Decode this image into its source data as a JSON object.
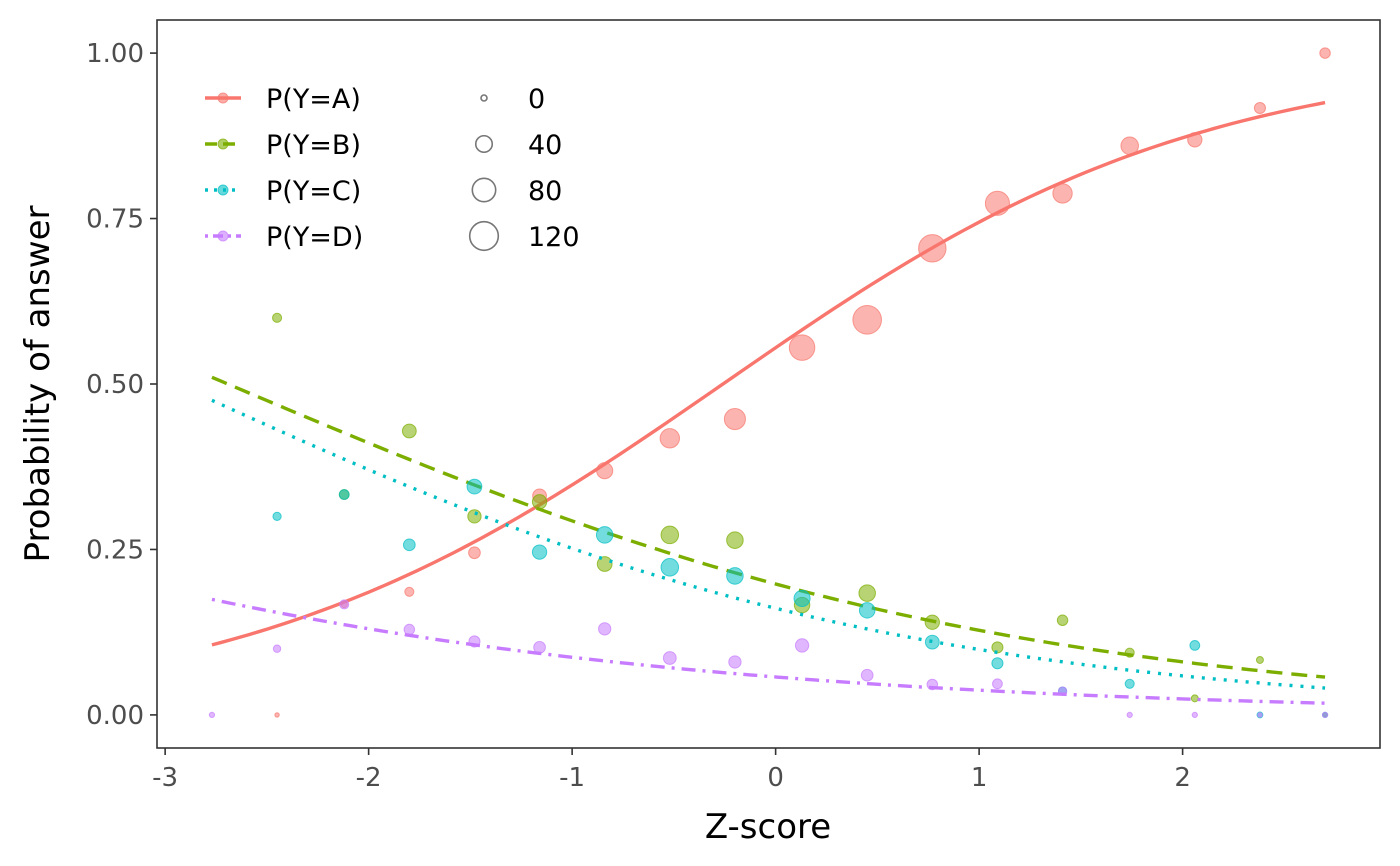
{
  "chart_data": {
    "type": "scatter",
    "xlabel": "Z-score",
    "ylabel": "Probability of answer",
    "xlim": [
      -3.04,
      2.97
    ],
    "ylim": [
      -0.05,
      1.05
    ],
    "x_ticks": [
      -3,
      -2,
      -1,
      0,
      1,
      2
    ],
    "x_tick_labels": [
      "-3",
      "-2",
      "-1",
      "0",
      "1",
      "2"
    ],
    "y_ticks": [
      0,
      0.25,
      0.5,
      0.75,
      1.0
    ],
    "y_tick_labels": [
      "0.00",
      "0.25",
      "0.50",
      "0.75",
      "1.00"
    ],
    "grid": false,
    "legend_placement": "top-left inside",
    "size_legend": {
      "values": [
        0,
        40,
        80,
        120
      ],
      "labels": [
        "0",
        "40",
        "80",
        "120"
      ],
      "size_range": [
        0,
        150
      ]
    },
    "series": [
      {
        "name": "P(Y=A)",
        "color": "#F8766D",
        "line_style": "solid",
        "points": [
          {
            "x": -2.45,
            "y": 0.0,
            "n": 2
          },
          {
            "x": -2.12,
            "y": 0.167,
            "n": 6
          },
          {
            "x": -1.8,
            "y": 0.186,
            "n": 12
          },
          {
            "x": -1.48,
            "y": 0.245,
            "n": 20
          },
          {
            "x": -1.16,
            "y": 0.331,
            "n": 28
          },
          {
            "x": -0.84,
            "y": 0.369,
            "n": 38
          },
          {
            "x": -0.52,
            "y": 0.418,
            "n": 55
          },
          {
            "x": -0.2,
            "y": 0.447,
            "n": 65
          },
          {
            "x": 0.13,
            "y": 0.555,
            "n": 95
          },
          {
            "x": 0.45,
            "y": 0.597,
            "n": 120
          },
          {
            "x": 0.77,
            "y": 0.705,
            "n": 110
          },
          {
            "x": 1.09,
            "y": 0.773,
            "n": 85
          },
          {
            "x": 1.41,
            "y": 0.788,
            "n": 55
          },
          {
            "x": 1.74,
            "y": 0.86,
            "n": 45
          },
          {
            "x": 2.06,
            "y": 0.869,
            "n": 30
          },
          {
            "x": 2.38,
            "y": 0.917,
            "n": 18
          },
          {
            "x": 2.7,
            "y": 1.0,
            "n": 16
          }
        ],
        "curve": {
          "type": "logistic",
          "intercept": 0.22,
          "slope": 0.85,
          "x_range": [
            -2.77,
            2.7
          ]
        }
      },
      {
        "name": "P(Y=B)",
        "color": "#7CAE00",
        "line_style": "dashed",
        "points": [
          {
            "x": -2.45,
            "y": 0.6,
            "n": 12
          },
          {
            "x": -2.12,
            "y": 0.333,
            "n": 14
          },
          {
            "x": -1.8,
            "y": 0.429,
            "n": 28
          },
          {
            "x": -1.48,
            "y": 0.3,
            "n": 26
          },
          {
            "x": -1.16,
            "y": 0.322,
            "n": 30
          },
          {
            "x": -0.84,
            "y": 0.228,
            "n": 32
          },
          {
            "x": -0.52,
            "y": 0.272,
            "n": 45
          },
          {
            "x": -0.2,
            "y": 0.264,
            "n": 40
          },
          {
            "x": 0.13,
            "y": 0.166,
            "n": 35
          },
          {
            "x": 0.45,
            "y": 0.184,
            "n": 40
          },
          {
            "x": 0.77,
            "y": 0.14,
            "n": 30
          },
          {
            "x": 1.09,
            "y": 0.102,
            "n": 18
          },
          {
            "x": 1.41,
            "y": 0.143,
            "n": 16
          },
          {
            "x": 1.74,
            "y": 0.094,
            "n": 12
          },
          {
            "x": 2.06,
            "y": 0.025,
            "n": 7
          },
          {
            "x": 2.38,
            "y": 0.083,
            "n": 7
          },
          {
            "x": 2.7,
            "y": 0.0,
            "n": 3
          }
        ],
        "curve": {
          "type": "logistic",
          "intercept": -1.4,
          "slope": -0.52,
          "x_range": [
            -2.77,
            2.7
          ]
        }
      },
      {
        "name": "P(Y=C)",
        "color": "#00BFC4",
        "line_style": "dotted",
        "points": [
          {
            "x": -2.45,
            "y": 0.3,
            "n": 10
          },
          {
            "x": -2.12,
            "y": 0.333,
            "n": 14
          },
          {
            "x": -1.8,
            "y": 0.257,
            "n": 20
          },
          {
            "x": -1.48,
            "y": 0.345,
            "n": 32
          },
          {
            "x": -1.16,
            "y": 0.246,
            "n": 30
          },
          {
            "x": -0.84,
            "y": 0.272,
            "n": 40
          },
          {
            "x": -0.52,
            "y": 0.223,
            "n": 45
          },
          {
            "x": -0.2,
            "y": 0.21,
            "n": 40
          },
          {
            "x": 0.13,
            "y": 0.176,
            "n": 38
          },
          {
            "x": 0.45,
            "y": 0.158,
            "n": 35
          },
          {
            "x": 0.77,
            "y": 0.11,
            "n": 28
          },
          {
            "x": 1.09,
            "y": 0.078,
            "n": 18
          },
          {
            "x": 1.41,
            "y": 0.036,
            "n": 10
          },
          {
            "x": 1.74,
            "y": 0.047,
            "n": 12
          },
          {
            "x": 2.06,
            "y": 0.105,
            "n": 14
          },
          {
            "x": 2.38,
            "y": 0.0,
            "n": 5
          },
          {
            "x": 2.7,
            "y": 0.0,
            "n": 4
          }
        ],
        "curve": {
          "type": "logistic",
          "intercept": -1.65,
          "slope": -0.56,
          "x_range": [
            -2.77,
            2.7
          ]
        }
      },
      {
        "name": "P(Y=D)",
        "color": "#C77CFF",
        "line_style": "dotdash",
        "points": [
          {
            "x": -2.77,
            "y": 0.0,
            "n": 4
          },
          {
            "x": -2.45,
            "y": 0.1,
            "n": 8
          },
          {
            "x": -2.12,
            "y": 0.167,
            "n": 12
          },
          {
            "x": -1.8,
            "y": 0.129,
            "n": 16
          },
          {
            "x": -1.48,
            "y": 0.111,
            "n": 18
          },
          {
            "x": -1.16,
            "y": 0.102,
            "n": 20
          },
          {
            "x": -0.84,
            "y": 0.13,
            "n": 22
          },
          {
            "x": -0.52,
            "y": 0.086,
            "n": 24
          },
          {
            "x": -0.2,
            "y": 0.08,
            "n": 22
          },
          {
            "x": 0.13,
            "y": 0.105,
            "n": 26
          },
          {
            "x": 0.45,
            "y": 0.06,
            "n": 20
          },
          {
            "x": 0.77,
            "y": 0.046,
            "n": 16
          },
          {
            "x": 1.09,
            "y": 0.047,
            "n": 14
          },
          {
            "x": 1.41,
            "y": 0.036,
            "n": 10
          },
          {
            "x": 1.74,
            "y": 0.0,
            "n": 4
          },
          {
            "x": 2.06,
            "y": 0.0,
            "n": 4
          },
          {
            "x": 2.38,
            "y": 0.0,
            "n": 3
          },
          {
            "x": 2.7,
            "y": 0.0,
            "n": 4
          }
        ],
        "curve": {
          "type": "logistic",
          "intercept": -2.8,
          "slope": -0.45,
          "x_range": [
            -2.77,
            2.7
          ]
        }
      }
    ]
  }
}
